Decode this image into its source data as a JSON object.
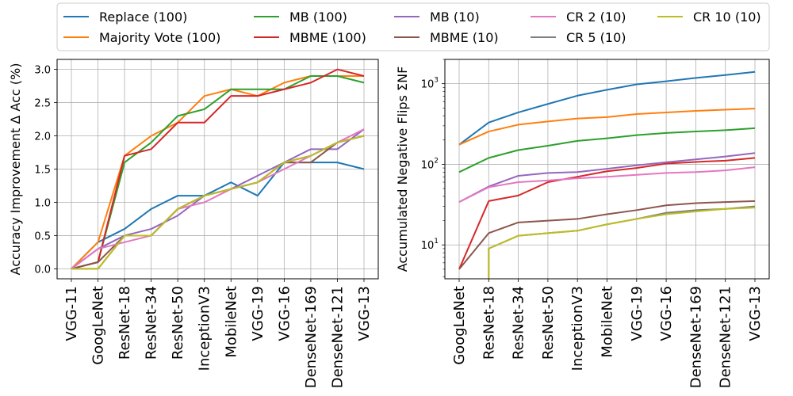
{
  "legend": [
    {
      "label": "Replace (100)",
      "color": "#1f77b4"
    },
    {
      "label": "Majority Vote (100)",
      "color": "#ff7f0e"
    },
    {
      "label": "MB (100)",
      "color": "#2ca02c"
    },
    {
      "label": "MBME (100)",
      "color": "#d62728"
    },
    {
      "label": "MB (10)",
      "color": "#9467bd"
    },
    {
      "label": "MBME (10)",
      "color": "#8c564b"
    },
    {
      "label": "CR 2 (10)",
      "color": "#e377c2"
    },
    {
      "label": "CR 5 (10)",
      "color": "#7f7f7f"
    },
    {
      "label": "CR 10 (10)",
      "color": "#bcbd22"
    }
  ],
  "chart_data": [
    {
      "type": "line",
      "title": "",
      "xlabel": "",
      "ylabel": "Accuracy Improvement Δ Acc (%)",
      "yscale": "linear",
      "ylim": [
        -0.15,
        3.15
      ],
      "yticks": [
        0.0,
        0.5,
        1.0,
        1.5,
        2.0,
        2.5,
        3.0
      ],
      "ytick_labels": [
        "0.0",
        "0.5",
        "1.0",
        "1.5",
        "2.0",
        "2.5",
        "3.0"
      ],
      "grid": true,
      "categories": [
        "VGG-11",
        "GoogLeNet",
        "ResNet-18",
        "ResNet-34",
        "ResNet-50",
        "InceptionV3",
        "MobileNet",
        "VGG-19",
        "VGG-16",
        "DenseNet-169",
        "DenseNet-121",
        "VGG-13"
      ],
      "series": [
        {
          "name": "Replace (100)",
          "color": "#1f77b4",
          "values": [
            0.0,
            0.4,
            0.6,
            0.9,
            1.1,
            1.1,
            1.3,
            1.1,
            1.6,
            1.6,
            1.6,
            1.5
          ]
        },
        {
          "name": "Majority Vote (100)",
          "color": "#ff7f0e",
          "values": [
            0.0,
            0.4,
            1.7,
            2.0,
            2.2,
            2.6,
            2.7,
            2.6,
            2.8,
            2.9,
            2.9,
            2.9
          ]
        },
        {
          "name": "MB (100)",
          "color": "#2ca02c",
          "values": [
            0.0,
            0.1,
            1.6,
            1.9,
            2.3,
            2.4,
            2.7,
            2.7,
            2.7,
            2.9,
            2.9,
            2.8
          ]
        },
        {
          "name": "MBME (100)",
          "color": "#d62728",
          "values": [
            0.0,
            0.1,
            1.7,
            1.8,
            2.2,
            2.2,
            2.6,
            2.6,
            2.7,
            2.8,
            3.0,
            2.9
          ]
        },
        {
          "name": "MB (10)",
          "color": "#9467bd",
          "values": [
            0.0,
            0.3,
            0.5,
            0.6,
            0.8,
            1.1,
            1.2,
            1.4,
            1.6,
            1.8,
            1.8,
            2.1
          ]
        },
        {
          "name": "MBME (10)",
          "color": "#8c564b",
          "values": [
            0.0,
            0.1,
            0.5,
            0.5,
            0.9,
            1.1,
            1.2,
            1.3,
            1.6,
            1.6,
            1.9,
            2.0
          ]
        },
        {
          "name": "CR 2 (10)",
          "color": "#e377c2",
          "values": [
            0.0,
            0.3,
            0.4,
            0.5,
            0.9,
            1.0,
            1.2,
            1.3,
            1.5,
            1.7,
            1.9,
            2.1
          ]
        },
        {
          "name": "CR 5 (10)",
          "color": "#7f7f7f",
          "values": [
            0.0,
            0.0,
            0.5,
            0.5,
            0.9,
            1.1,
            1.2,
            1.3,
            1.6,
            1.7,
            1.9,
            2.0
          ]
        },
        {
          "name": "CR 10 (10)",
          "color": "#bcbd22",
          "values": [
            0.0,
            0.0,
            0.5,
            0.5,
            0.9,
            1.1,
            1.2,
            1.3,
            1.6,
            1.7,
            1.9,
            2.0
          ]
        }
      ]
    },
    {
      "type": "line",
      "title": "",
      "xlabel": "",
      "ylabel": "Accumulated Negative Flips ΣNF",
      "yscale": "log",
      "ylim": [
        3.8,
        2000
      ],
      "yticks": [
        10,
        100,
        1000
      ],
      "ytick_labels": [
        "10^1",
        "10^2",
        "10^3"
      ],
      "grid": true,
      "categories": [
        "GoogLeNet",
        "ResNet-18",
        "ResNet-34",
        "ResNet-50",
        "InceptionV3",
        "MobileNet",
        "VGG-19",
        "VGG-16",
        "DenseNet-169",
        "DenseNet-121",
        "VGG-13"
      ],
      "series": [
        {
          "name": "Replace (100)",
          "color": "#1f77b4",
          "values": [
            175,
            330,
            440,
            560,
            710,
            840,
            980,
            1070,
            1180,
            1280,
            1400
          ]
        },
        {
          "name": "Majority Vote (100)",
          "color": "#ff7f0e",
          "values": [
            175,
            255,
            310,
            340,
            370,
            385,
            420,
            440,
            460,
            475,
            490
          ]
        },
        {
          "name": "MB (100)",
          "color": "#2ca02c",
          "values": [
            80,
            120,
            150,
            170,
            195,
            210,
            230,
            245,
            255,
            265,
            280
          ]
        },
        {
          "name": "MBME (100)",
          "color": "#d62728",
          "values": [
            5,
            35,
            41,
            60,
            70,
            82,
            90,
            102,
            107,
            111,
            120
          ]
        },
        {
          "name": "MB (10)",
          "color": "#9467bd",
          "values": [
            34,
            53,
            72,
            78,
            80,
            88,
            97,
            106,
            115,
            125,
            138
          ]
        },
        {
          "name": "MBME (10)",
          "color": "#8c564b",
          "values": [
            5,
            14,
            19,
            20,
            21,
            24,
            27,
            31,
            33,
            34,
            35
          ]
        },
        {
          "name": "CR 2 (10)",
          "color": "#e377c2",
          "values": [
            34,
            52,
            60,
            63,
            67,
            70,
            74,
            78,
            80,
            84,
            92
          ]
        },
        {
          "name": "CR 5 (10)",
          "color": "#7f7f7f",
          "values": [
            null,
            9,
            13,
            14,
            15,
            18,
            21,
            25,
            27,
            28,
            30
          ]
        },
        {
          "name": "CR 10 (10)",
          "color": "#bcbd22",
          "values": [
            null,
            9,
            13,
            14,
            15,
            18,
            21,
            24,
            26,
            28,
            29
          ]
        }
      ]
    }
  ]
}
